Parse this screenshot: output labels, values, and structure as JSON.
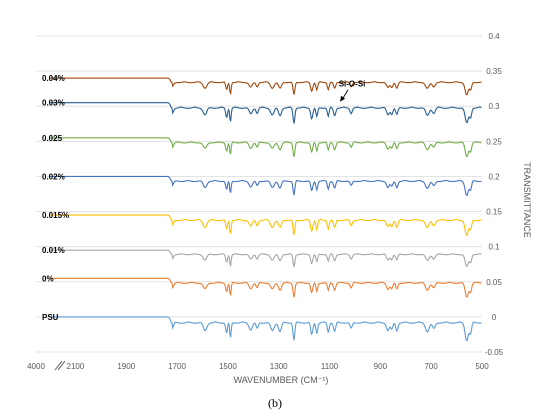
{
  "chart_data": {
    "type": "line",
    "title": "",
    "xlabel": "WAVENUMBER (CM⁻¹)",
    "ylabel": "TRANSMITTANCE",
    "caption": "(b)",
    "x_break_label": "4000",
    "xlim": [
      4000,
      500
    ],
    "x_ticks": [
      2100,
      1900,
      1700,
      1500,
      1300,
      1100,
      900,
      700,
      500
    ],
    "ylim": [
      -0.05,
      0.4
    ],
    "y_ticks": [
      "-0.05",
      "0",
      "0.05",
      "0.1",
      "0.15",
      "0.2",
      "0.25",
      "0.3",
      "0.35",
      "0.4"
    ],
    "y_tick_values": [
      -0.05,
      0,
      0.05,
      0.1,
      0.15,
      0.2,
      0.25,
      0.3,
      0.35,
      0.4
    ],
    "grid": true,
    "legend": "labels at left of each trace",
    "annotation": {
      "text": "Si-O-Si",
      "x": 1035,
      "y": 0.305,
      "series": "0.03%"
    },
    "peaks_x": [
      1720,
      1590,
      1505,
      1490,
      1410,
      1385,
      1325,
      1295,
      1240,
      1170,
      1150,
      1105,
      1080,
      1015,
      870,
      855,
      835,
      715,
      690,
      560,
      545
    ],
    "series": [
      {
        "name": "PSU",
        "color": "#5b9bd5",
        "baseline": 0.0,
        "depth": 0.025
      },
      {
        "name": "0%",
        "color": "#ed7d31",
        "baseline": 0.055,
        "depth": 0.02
      },
      {
        "name": "0.01%",
        "color": "#a5a5a5",
        "baseline": 0.095,
        "depth": 0.018
      },
      {
        "name": "0.015%",
        "color": "#ffc000",
        "baseline": 0.145,
        "depth": 0.022
      },
      {
        "name": "0.02%",
        "color": "#4472c4",
        "baseline": 0.2,
        "depth": 0.02
      },
      {
        "name": "0.025",
        "color": "#70ad47",
        "baseline": 0.255,
        "depth": 0.02
      },
      {
        "name": "0.03%",
        "color": "#255e91",
        "baseline": 0.305,
        "depth": 0.022
      },
      {
        "name": "0.04%",
        "color": "#9e480e",
        "baseline": 0.34,
        "depth": 0.018
      }
    ]
  }
}
